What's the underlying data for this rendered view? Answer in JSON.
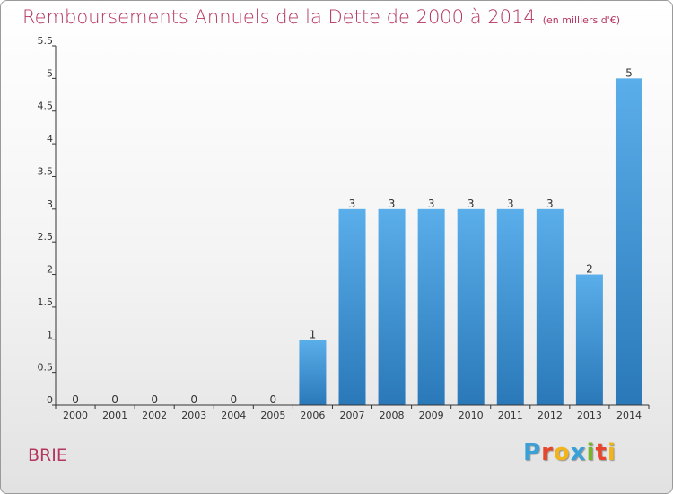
{
  "title": "Remboursements Annuels de la Dette de 2000 à 2014",
  "unit": "(en milliers d'€)",
  "commune": "BRIE",
  "logo": {
    "text": "Proxiti",
    "letter_colors": [
      "#3aa0d8",
      "#e8452c",
      "#f1b41c",
      "#3aa0d8",
      "#79b52c",
      "#e8452c",
      "#f1b41c"
    ]
  },
  "colors": {
    "bar_top": "#5aaeea",
    "bar_bottom": "#2a78b8",
    "title": "#b5365f",
    "axis": "#333333"
  },
  "chart_data": {
    "type": "bar",
    "title": "Remboursements Annuels de la Dette de 2000 à 2014",
    "ylabel": "",
    "xlabel": "",
    "categories": [
      "2000",
      "2001",
      "2002",
      "2003",
      "2004",
      "2005",
      "2006",
      "2007",
      "2008",
      "2009",
      "2010",
      "2011",
      "2012",
      "2013",
      "2014"
    ],
    "values": [
      0,
      0,
      0,
      0,
      0,
      0,
      1,
      3,
      3,
      3,
      3,
      3,
      3,
      2,
      5
    ],
    "value_labels": [
      "0",
      "0",
      "0",
      "0",
      "0",
      "0",
      "1",
      "3",
      "3",
      "3",
      "3",
      "3",
      "3",
      "2",
      "5"
    ],
    "ylim": [
      0,
      5.5
    ],
    "yticks": [
      0,
      0.5,
      1,
      1.5,
      2,
      2.5,
      3,
      3.5,
      4,
      4.5,
      5,
      5.5
    ],
    "ytick_labels": [
      "0",
      "0.5",
      "1",
      "1.5",
      "2",
      "2.5",
      "3",
      "3.5",
      "4",
      "4.5",
      "5",
      "5.5"
    ],
    "grid": false,
    "legend": "none"
  }
}
